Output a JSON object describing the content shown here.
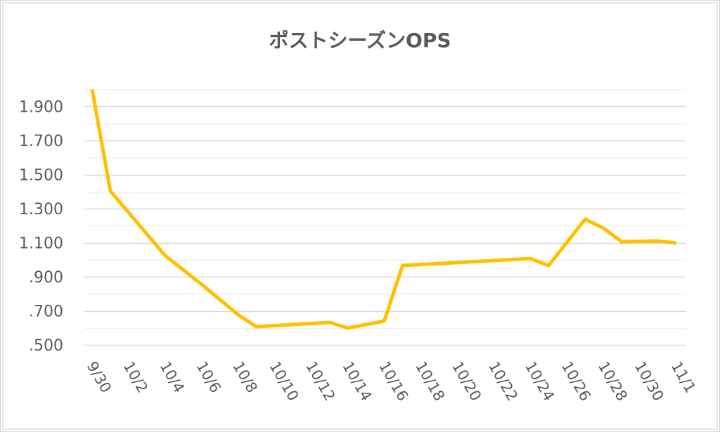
{
  "chart_data": {
    "type": "line",
    "title": "ポストシーズンOPS",
    "xlabel": "",
    "ylabel": "",
    "ylim": [
      0.5,
      2.0
    ],
    "grid": true,
    "legend": "none",
    "line_color": "#FFC000",
    "x_tick_labels": [
      "9/30",
      "10/2",
      "10/4",
      "10/6",
      "10/8",
      "10/10",
      "10/12",
      "10/14",
      "10/16",
      "10/18",
      "10/20",
      "10/22",
      "10/24",
      "10/26",
      "10/28",
      "10/30",
      "11/1"
    ],
    "y_tick_labels": [
      "1.900",
      "1.700",
      "1.500",
      "1.300",
      "1.100",
      ".900",
      ".700",
      ".500"
    ],
    "y_tick_values": [
      1.9,
      1.7,
      1.5,
      1.3,
      1.1,
      0.9,
      0.7,
      0.5
    ],
    "series": [
      {
        "name": "OPS",
        "points": [
          {
            "date": "9/30",
            "day": 0,
            "value": 2.0
          },
          {
            "date": "10/1",
            "day": 1,
            "value": 1.403
          },
          {
            "date": "10/4",
            "day": 4,
            "value": 1.024
          },
          {
            "date": "10/6",
            "day": 6,
            "value": 0.855
          },
          {
            "date": "10/8",
            "day": 8,
            "value": 0.677
          },
          {
            "date": "10/9",
            "day": 9,
            "value": 0.607
          },
          {
            "date": "10/13",
            "day": 13,
            "value": 0.632
          },
          {
            "date": "10/14",
            "day": 14,
            "value": 0.599
          },
          {
            "date": "10/16",
            "day": 16,
            "value": 0.64
          },
          {
            "date": "10/17",
            "day": 17,
            "value": 0.966
          },
          {
            "date": "10/24",
            "day": 24,
            "value": 1.007
          },
          {
            "date": "10/25",
            "day": 25,
            "value": 0.966
          },
          {
            "date": "10/27",
            "day": 27,
            "value": 1.238
          },
          {
            "date": "10/28",
            "day": 28,
            "value": 1.185
          },
          {
            "date": "10/29",
            "day": 29,
            "value": 1.106
          },
          {
            "date": "10/31",
            "day": 31,
            "value": 1.11
          },
          {
            "date": "11/1",
            "day": 32,
            "value": 1.098
          }
        ]
      }
    ]
  }
}
